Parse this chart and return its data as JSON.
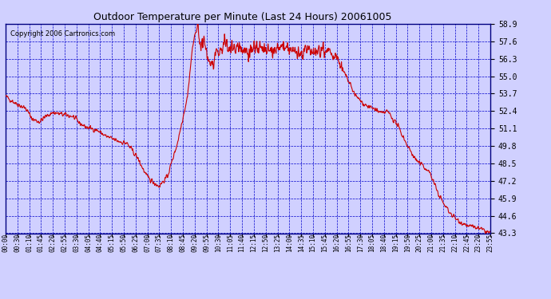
{
  "title": "Outdoor Temperature per Minute (Last 24 Hours) 20061005",
  "copyright_text": "Copyright 2006 Cartronics.com",
  "background_color": "#d0d0ff",
  "plot_bg_color": "#d0d0ff",
  "line_color": "#cc0000",
  "grid_color": "#0000cc",
  "text_color": "#000000",
  "ylim": [
    43.3,
    58.9
  ],
  "yticks": [
    43.3,
    44.6,
    45.9,
    47.2,
    48.5,
    49.8,
    51.1,
    52.4,
    53.7,
    55.0,
    56.3,
    57.6,
    58.9
  ],
  "xtick_labels": [
    "00:00",
    "00:30",
    "01:10",
    "01:45",
    "02:20",
    "02:55",
    "03:30",
    "04:05",
    "04:40",
    "05:15",
    "05:50",
    "06:25",
    "07:00",
    "07:35",
    "08:10",
    "08:45",
    "09:20",
    "09:55",
    "10:30",
    "11:05",
    "11:40",
    "12:15",
    "12:50",
    "13:25",
    "14:00",
    "14:35",
    "15:10",
    "15:45",
    "16:20",
    "16:55",
    "17:30",
    "18:05",
    "18:40",
    "19:15",
    "19:50",
    "20:25",
    "21:00",
    "21:35",
    "22:10",
    "22:45",
    "23:20",
    "23:55"
  ]
}
